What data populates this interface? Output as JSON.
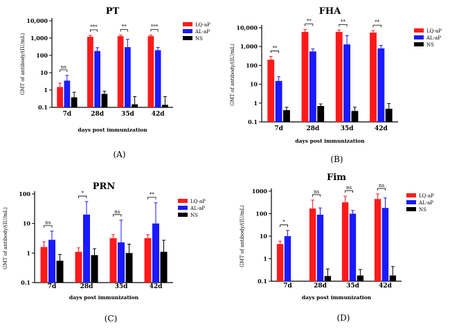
{
  "chart_data": [
    {
      "type": "bar",
      "title": "PT",
      "panel_label": "(A)",
      "xlabel": "days post immunization",
      "ylabel": "GMT  of antibody/(IU/mL)",
      "yscale": "log",
      "ylim": [
        0.1,
        10000
      ],
      "yticks": [
        "0.1",
        "1",
        "10",
        "100",
        "1,000",
        "10,000"
      ],
      "categories": [
        "7d",
        "28d",
        "35d",
        "42d"
      ],
      "series": [
        {
          "name": "LQ-aP",
          "color": "#ff1a1a",
          "values": [
            1.5,
            1200,
            1300,
            1300
          ],
          "error_upper": [
            2.5,
            1450,
            1500,
            1500
          ]
        },
        {
          "name": "AL-aP",
          "color": "#1a1aff",
          "values": [
            3.5,
            180,
            300,
            200
          ],
          "error_upper": [
            7,
            280,
            850,
            290
          ]
        },
        {
          "name": "NS",
          "color": "#000000",
          "values": [
            0.38,
            0.6,
            0.15,
            0.14
          ],
          "error_upper": [
            0.75,
            0.85,
            0.42,
            0.42
          ]
        }
      ],
      "annotations": [
        {
          "category": "7d",
          "text": "ns"
        },
        {
          "category": "28d",
          "text": "***"
        },
        {
          "category": "35d",
          "text": "**"
        },
        {
          "category": "42d",
          "text": "***"
        }
      ],
      "legend_position": "top-right"
    },
    {
      "type": "bar",
      "title": "FHA",
      "panel_label": "(B)",
      "xlabel": "days post immunization",
      "ylabel": "GMT  of antibody/(IU/mL)",
      "yscale": "log",
      "ylim": [
        0.1,
        10000
      ],
      "yticks": [
        "0.1",
        "1",
        "10",
        "100",
        "1,000",
        "10,000"
      ],
      "categories": [
        "7d",
        "28d",
        "35d",
        "42d"
      ],
      "series": [
        {
          "name": "LQ-aP",
          "color": "#ff1a1a",
          "values": [
            200,
            6000,
            6000,
            5500
          ],
          "error_upper": [
            300,
            8000,
            7500,
            7000
          ]
        },
        {
          "name": "AL-aP",
          "color": "#1a1aff",
          "values": [
            15,
            550,
            1300,
            800
          ],
          "error_upper": [
            25,
            750,
            3800,
            1150
          ]
        },
        {
          "name": "NS",
          "color": "#000000",
          "values": [
            0.42,
            0.7,
            0.38,
            0.5
          ],
          "error_upper": [
            0.6,
            0.9,
            0.6,
            0.95
          ]
        }
      ],
      "annotations": [
        {
          "category": "7d",
          "text": "**"
        },
        {
          "category": "28d",
          "text": "**"
        },
        {
          "category": "35d",
          "text": "**"
        },
        {
          "category": "42d",
          "text": "**"
        }
      ],
      "legend_position": "top-right"
    },
    {
      "type": "bar",
      "title": "PRN",
      "panel_label": "(C)",
      "xlabel": "days post immunization",
      "ylabel": "GMT  of antibody/(IU/mL)",
      "yscale": "log",
      "ylim": [
        0.1,
        100
      ],
      "yticks": [
        "0.1",
        "1",
        "10",
        "100"
      ],
      "categories": [
        "7d",
        "28d",
        "35d",
        "42d"
      ],
      "series": [
        {
          "name": "LQ-aP",
          "color": "#ff1a1a",
          "values": [
            1.6,
            1.1,
            3.2,
            3.2
          ],
          "error_upper": [
            2.4,
            1.5,
            4.2,
            4.2
          ]
        },
        {
          "name": "AL-aP",
          "color": "#1a1aff",
          "values": [
            2.8,
            20,
            2.3,
            10
          ],
          "error_upper": [
            5.5,
            55,
            13,
            50
          ]
        },
        {
          "name": "NS",
          "color": "#000000",
          "values": [
            0.55,
            0.85,
            1.0,
            1.1
          ],
          "error_upper": [
            0.9,
            1.4,
            2.0,
            2.7
          ]
        }
      ],
      "annotations": [
        {
          "category": "7d",
          "text": "ns"
        },
        {
          "category": "28d",
          "text": "*"
        },
        {
          "category": "35d",
          "text": "ns"
        },
        {
          "category": "42d",
          "text": "**"
        }
      ],
      "legend_position": "top-right"
    },
    {
      "type": "bar",
      "title": "Fim",
      "panel_label": "(D)",
      "xlabel": "days post immunization",
      "ylabel": "GMT  of antibody/(IU/mL)",
      "yscale": "log",
      "ylim": [
        0.1,
        1000
      ],
      "yticks": [
        "0.1",
        "1",
        "10",
        "100",
        "1000"
      ],
      "categories": [
        "7d",
        "28d",
        "35d",
        "42d"
      ],
      "series": [
        {
          "name": "LQ-aP",
          "color": "#ff1a1a",
          "values": [
            4.5,
            170,
            320,
            450
          ],
          "error_upper": [
            6,
            400,
            600,
            750
          ]
        },
        {
          "name": "AL-aP",
          "color": "#1a1aff",
          "values": [
            10,
            90,
            100,
            180
          ],
          "error_upper": [
            18,
            180,
            140,
            500
          ]
        },
        {
          "name": "NS",
          "color": "#000000",
          "values": [
            null,
            0.17,
            0.18,
            0.18
          ],
          "error_upper": [
            null,
            0.35,
            0.33,
            0.45
          ]
        }
      ],
      "annotations": [
        {
          "category": "7d",
          "text": "*"
        },
        {
          "category": "28d",
          "text": "ns"
        },
        {
          "category": "35d",
          "text": "ns"
        },
        {
          "category": "42d",
          "text": "ns"
        }
      ],
      "legend_position": "top-right"
    }
  ]
}
